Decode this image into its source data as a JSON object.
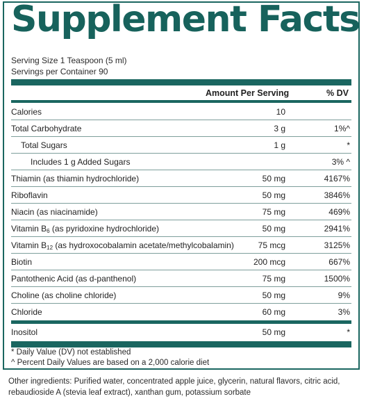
{
  "title": "Supplement Facts",
  "serving_size": "Serving Size 1 Teaspoon (5 ml)",
  "servings_per_container": "Servings per Container 90",
  "header": {
    "amount": "Amount Per Serving",
    "dv": "% DV"
  },
  "rows": [
    {
      "label": "Calories",
      "amount": "10",
      "dv": ""
    },
    {
      "label": "Total Carbohydrate",
      "amount": "3 g",
      "dv": "1%^"
    },
    {
      "label": "Total Sugars",
      "amount": "1 g",
      "dv": "*"
    },
    {
      "label": "Includes 1 g Added Sugars",
      "amount": "",
      "dv": "3% ^"
    },
    {
      "label": "Thiamin (as thiamin hydrochloride)",
      "amount": "50 mg",
      "dv": "4167%"
    },
    {
      "label": "Riboflavin",
      "amount": "50 mg",
      "dv": "3846%"
    },
    {
      "label": "Niacin (as niacinamide)",
      "amount": "75 mg",
      "dv": "469%"
    },
    {
      "label_pre": "Vitamin B",
      "label_sub": "6",
      "label_post": " (as pyridoxine hydrochloride)",
      "amount": "50 mg",
      "dv": "2941%"
    },
    {
      "label_pre": "Vitamin B",
      "label_sub": "12",
      "label_post": " (as hydroxocobalamin acetate/methylcobalamin)",
      "amount": "75 mcg",
      "dv": "3125%"
    },
    {
      "label": "Biotin",
      "amount": "200 mcg",
      "dv": "667%"
    },
    {
      "label": "Pantothenic Acid (as d-panthenol)",
      "amount": "75 mg",
      "dv": "1500%"
    },
    {
      "label": "Choline (as choline chloride)",
      "amount": "50 mg",
      "dv": "9%"
    },
    {
      "label": "Chloride",
      "amount": "60 mg",
      "dv": "3%"
    },
    {
      "label": "Inositol",
      "amount": "50 mg",
      "dv": "*"
    }
  ],
  "footnotes": {
    "dv_not_established": "* Daily Value (DV) not established",
    "percent_basis": "^ Percent Daily Values are based on a 2,000 calorie diet"
  },
  "other_ingredients": "Other ingredients: Purified water, concentrated apple juice, glycerin, natural flavors, citric acid, rebaudioside A (stevia leaf extract), xanthan gum, potassium sorbate",
  "colors": {
    "accent": "#17625c",
    "rule": "#1a6660"
  }
}
